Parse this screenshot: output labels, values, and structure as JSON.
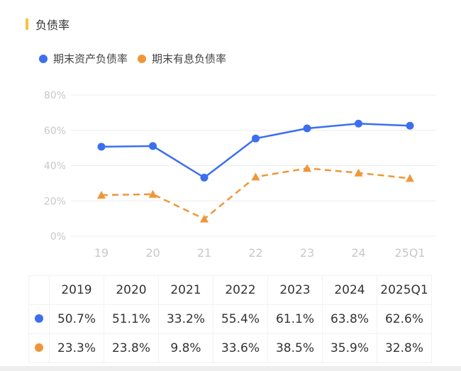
{
  "title": "负债率",
  "colors": {
    "title_bar": "#f5c242",
    "asset": "#3b6ff0",
    "interest": "#f0963a"
  },
  "chart_data": {
    "type": "line",
    "title": "负债率",
    "categories": [
      "19",
      "20",
      "21",
      "22",
      "23",
      "24",
      "25Q1"
    ],
    "yticks": [
      "0%",
      "20%",
      "40%",
      "60%",
      "80%"
    ],
    "ylim": [
      0,
      80
    ],
    "grid": true,
    "legend_position": "top-left",
    "series": [
      {
        "name": "期末资产负债率",
        "values": [
          50.7,
          51.1,
          33.2,
          55.4,
          61.1,
          63.8,
          62.6
        ],
        "marker": "circle",
        "style": "solid"
      },
      {
        "name": "期末有息负债率",
        "values": [
          23.3,
          23.8,
          9.8,
          33.6,
          38.5,
          35.9,
          32.8
        ],
        "marker": "triangle",
        "style": "dashed"
      }
    ]
  },
  "table": {
    "headers": [
      "2019",
      "2020",
      "2021",
      "2022",
      "2023",
      "2024",
      "2025Q1"
    ],
    "rows": [
      [
        "50.7%",
        "51.1%",
        "33.2%",
        "55.4%",
        "61.1%",
        "63.8%",
        "62.6%"
      ],
      [
        "23.3%",
        "23.8%",
        "9.8%",
        "33.6%",
        "38.5%",
        "35.9%",
        "32.8%"
      ]
    ]
  }
}
